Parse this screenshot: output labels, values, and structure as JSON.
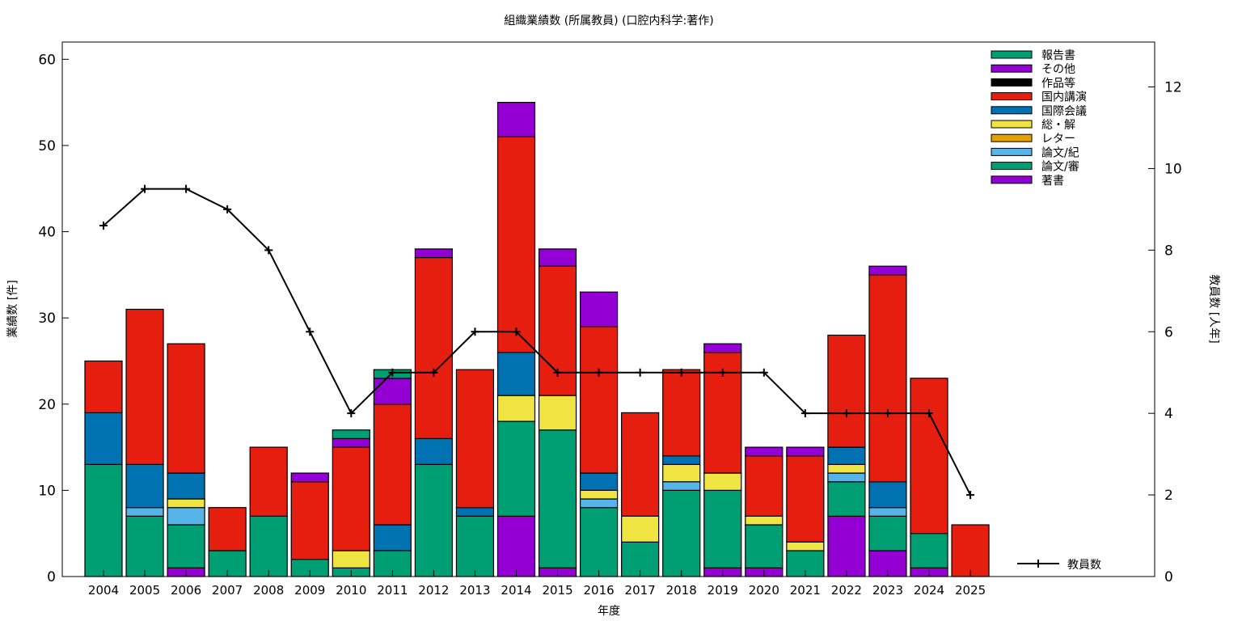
{
  "chart_data": {
    "type": "bar",
    "stacked": true,
    "title": "組織業績数 (所属教員) (口腔内科学:著作)",
    "xlabel": "年度",
    "ylabel": "業績数 [件]",
    "y2label": "教員数 [人年]",
    "ylim": [
      0,
      62
    ],
    "y2lim": [
      0,
      13.1
    ],
    "yticks": [
      0,
      10,
      20,
      30,
      40,
      50,
      60
    ],
    "y2ticks": [
      0,
      2,
      4,
      6,
      8,
      10,
      12
    ],
    "legend_position": "top-right",
    "categories": [
      "2004",
      "2005",
      "2006",
      "2007",
      "2008",
      "2009",
      "2010",
      "2011",
      "2012",
      "2013",
      "2014",
      "2015",
      "2016",
      "2017",
      "2018",
      "2019",
      "2020",
      "2021",
      "2022",
      "2023",
      "2024",
      "2025"
    ],
    "series": [
      {
        "name": "著書",
        "color": "#9400d3",
        "values": [
          0,
          0,
          1,
          0,
          0,
          0,
          0,
          0,
          0,
          0,
          7,
          1,
          0,
          0,
          0,
          1,
          1,
          0,
          7,
          3,
          1,
          0
        ]
      },
      {
        "name": "論文/審",
        "color": "#009e73",
        "values": [
          13,
          7,
          5,
          3,
          7,
          2,
          1,
          3,
          13,
          7,
          11,
          16,
          8,
          4,
          10,
          9,
          5,
          3,
          4,
          4,
          4,
          0
        ]
      },
      {
        "name": "論文/紀",
        "color": "#56b4e9",
        "values": [
          0,
          1,
          2,
          0,
          0,
          0,
          0,
          0,
          0,
          0,
          0,
          0,
          1,
          0,
          1,
          0,
          0,
          0,
          1,
          1,
          0,
          0
        ]
      },
      {
        "name": "レター",
        "color": "#e69f00",
        "values": [
          0,
          0,
          0,
          0,
          0,
          0,
          0,
          0,
          0,
          0,
          0,
          0,
          0,
          0,
          0,
          0,
          0,
          0,
          0,
          0,
          0,
          0
        ]
      },
      {
        "name": "総・解",
        "color": "#f0e442",
        "values": [
          0,
          0,
          1,
          0,
          0,
          0,
          2,
          0,
          0,
          0,
          3,
          4,
          1,
          3,
          2,
          2,
          1,
          1,
          1,
          0,
          0,
          0
        ]
      },
      {
        "name": "国際会議",
        "color": "#0072b2",
        "values": [
          6,
          5,
          3,
          0,
          0,
          0,
          0,
          3,
          3,
          1,
          5,
          0,
          2,
          0,
          1,
          0,
          0,
          0,
          2,
          3,
          0,
          0
        ]
      },
      {
        "name": "国内講演",
        "color": "#e51e10",
        "values": [
          6,
          18,
          15,
          5,
          8,
          9,
          12,
          14,
          21,
          16,
          25,
          15,
          17,
          12,
          10,
          14,
          7,
          10,
          13,
          24,
          18,
          6
        ]
      },
      {
        "name": "作品等",
        "color": "#000000",
        "values": [
          0,
          0,
          0,
          0,
          0,
          0,
          0,
          0,
          0,
          0,
          0,
          0,
          0,
          0,
          0,
          0,
          0,
          0,
          0,
          0,
          0,
          0
        ]
      },
      {
        "name": "その他",
        "color": "#9400d3",
        "values": [
          0,
          0,
          0,
          0,
          0,
          1,
          1,
          3,
          1,
          0,
          4,
          2,
          4,
          0,
          0,
          1,
          1,
          1,
          0,
          1,
          0,
          0
        ]
      },
      {
        "name": "報告書",
        "color": "#009e73",
        "values": [
          0,
          0,
          0,
          0,
          0,
          0,
          1,
          1,
          0,
          0,
          0,
          0,
          0,
          0,
          0,
          0,
          0,
          0,
          0,
          0,
          0,
          0
        ]
      }
    ],
    "line": {
      "name": "教員数",
      "axis": "y2",
      "color": "#000000",
      "values": [
        8.6,
        9.5,
        9.5,
        9,
        8,
        6,
        4,
        5,
        5,
        6,
        6,
        5,
        5,
        5,
        5,
        5,
        5,
        4,
        4,
        4,
        4,
        2
      ]
    }
  }
}
